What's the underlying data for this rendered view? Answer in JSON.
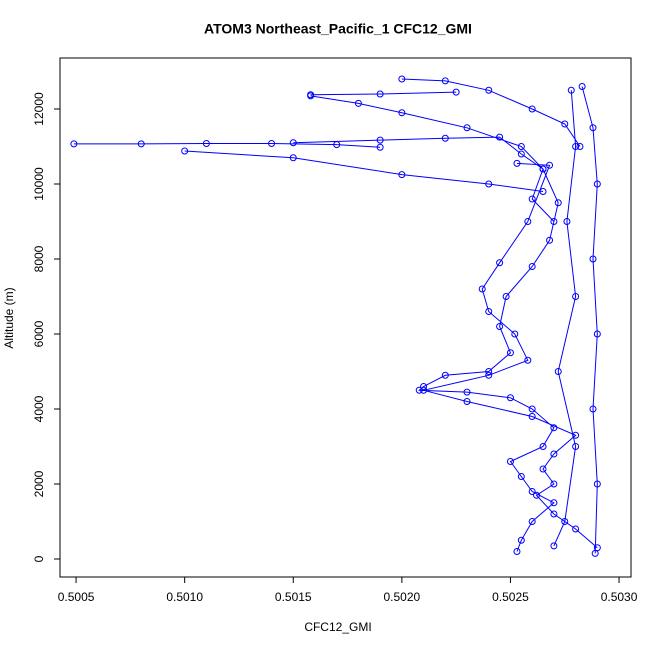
{
  "chart_data": {
    "type": "line",
    "title": "ATOM3 Northeast_Pacific_1 CFC12_GMI",
    "x_label": "CFC12_GMI",
    "y_label": "Altitude (m)",
    "color": "#0000ff",
    "xlim": [
      0.500426,
      0.503055
    ],
    "ylim": [
      -480,
      13360
    ],
    "xticks": [
      0.5005,
      {
        "value": 0.501,
        "label": "0.5010"
      },
      0.5015,
      {
        "value": 0.502,
        "label": "0.5020"
      },
      0.5025,
      {
        "value": 0.503,
        "label": "0.5030"
      }
    ],
    "yticks": [
      0,
      2000,
      4000,
      6000,
      8000,
      10000,
      12000
    ],
    "x": [
      0.50049,
      0.5008,
      0.5011,
      0.5014,
      0.5017,
      0.5019,
      null,
      0.5015,
      0.5019,
      0.5022,
      0.50245,
      0.50255,
      0.50265,
      0.50272,
      0.50268,
      0.5026,
      0.50248,
      0.50245,
      0.5025,
      0.5024,
      0.5022,
      0.5021,
      0.50208,
      0.5023,
      0.5025,
      0.5026,
      0.5027,
      0.50265,
      0.5025,
      0.50255,
      0.5026,
      0.5027,
      0.5026,
      0.50255,
      0.50253,
      null,
      0.501,
      0.5015,
      0.502,
      0.5024,
      0.50265,
      null,
      0.50158,
      0.5019,
      0.50225,
      null,
      0.502,
      0.5022,
      0.5024,
      0.5026,
      0.50275,
      0.50282,
      null,
      0.50158,
      0.5018,
      0.502,
      0.5023,
      0.50255,
      0.50265,
      0.5026,
      0.5027,
      null,
      0.50253,
      0.50268,
      0.50258,
      0.50245,
      0.50237,
      0.5024,
      0.50252,
      0.50258,
      0.5024,
      0.5021,
      0.5023,
      0.5026,
      0.5028,
      0.5027,
      0.50265,
      0.5027,
      0.50262,
      0.5027,
      0.5028,
      0.5029,
      null,
      0.50283,
      0.50288,
      0.5029,
      0.50288,
      0.5029,
      0.50288,
      0.5029,
      0.50289,
      null,
      0.50278,
      0.5028,
      0.50276,
      0.5028,
      0.50272,
      0.5028,
      0.50275,
      0.5027
    ],
    "values": [
      11070,
      11070,
      11080,
      11080,
      11050,
      10980,
      null,
      11100,
      11170,
      11220,
      11250,
      10800,
      10400,
      9500,
      8500,
      7800,
      7000,
      6200,
      5500,
      5000,
      4900,
      4600,
      4500,
      4450,
      4300,
      4000,
      3500,
      3000,
      2600,
      2200,
      1800,
      1500,
      1000,
      500,
      200,
      null,
      10880,
      10700,
      10250,
      10000,
      9800,
      null,
      12380,
      12400,
      12450,
      null,
      12800,
      12750,
      12500,
      12000,
      11600,
      11000,
      null,
      12350,
      12150,
      11900,
      11500,
      11000,
      10400,
      9600,
      9000,
      null,
      10550,
      10500,
      9000,
      7900,
      7200,
      6600,
      6000,
      5300,
      4900,
      4500,
      4200,
      3800,
      3300,
      2800,
      2400,
      2000,
      1700,
      1200,
      800,
      300,
      null,
      12600,
      11500,
      10000,
      8000,
      6000,
      4000,
      2000,
      150,
      null,
      12500,
      11000,
      9000,
      7000,
      5000,
      3000,
      1000,
      350
    ]
  }
}
